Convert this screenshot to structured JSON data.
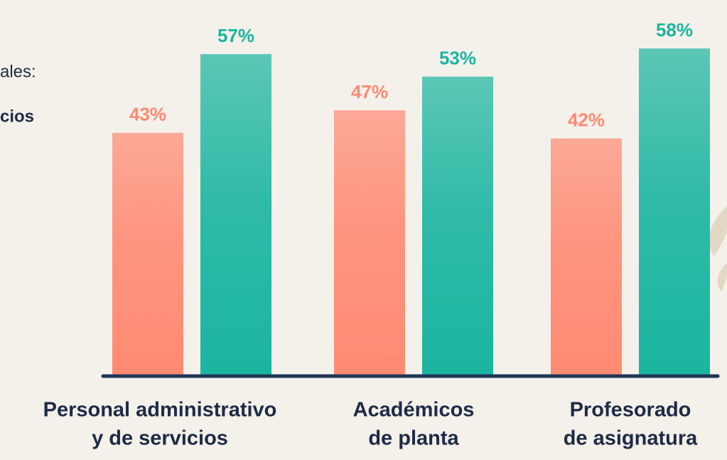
{
  "chart_data": {
    "type": "bar",
    "annotations": [
      "ales:",
      "cios"
    ],
    "categories": [
      [
        "Personal administrativo",
        "y de servicios"
      ],
      [
        "Académicos",
        "de planta"
      ],
      [
        "Profesorado",
        "de asignatura"
      ]
    ],
    "series": [
      {
        "color": "#ff8a73",
        "values": [
          43,
          47,
          42
        ],
        "value_labels": [
          "43%",
          "47%",
          "42%"
        ]
      },
      {
        "color": "#1ab5a0",
        "values": [
          57,
          53,
          58
        ],
        "value_labels": [
          "57%",
          "53%",
          "58%"
        ]
      }
    ]
  }
}
